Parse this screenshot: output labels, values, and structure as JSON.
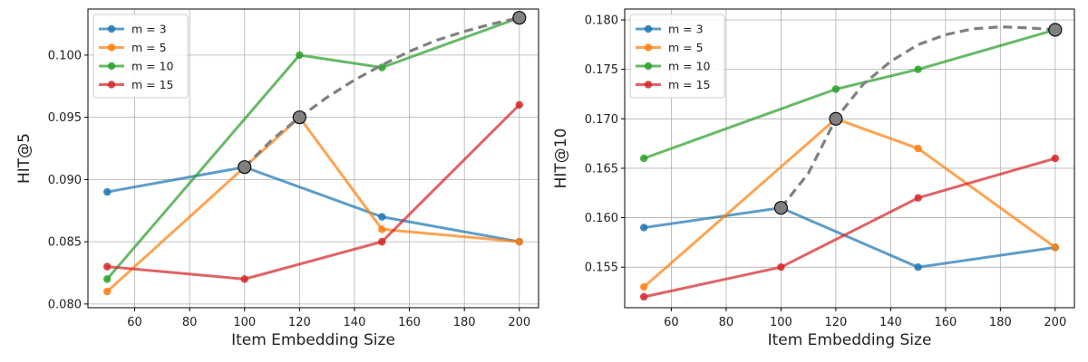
{
  "chart_data": [
    {
      "type": "line",
      "xlabel": "Item Embedding Size",
      "ylabel": "HIT@5",
      "xlim": [
        43,
        207
      ],
      "ylim": [
        0.0797,
        0.1037
      ],
      "xticks": [
        60,
        80,
        100,
        120,
        140,
        160,
        180,
        200
      ],
      "yticks": [
        0.08,
        0.085,
        0.09,
        0.095,
        0.1
      ],
      "yticklabels": [
        "0.080",
        "0.085",
        "0.090",
        "0.095",
        "0.100"
      ],
      "grid": true,
      "legend_position": "top-left",
      "x": [
        50,
        100,
        120,
        150,
        200
      ],
      "series": [
        {
          "name": "m = 3",
          "color": "#1f77b4",
          "values": [
            0.089,
            0.091,
            null,
            0.087,
            0.085
          ]
        },
        {
          "name": "m = 5",
          "color": "#ff7f0e",
          "values": [
            0.081,
            0.091,
            0.095,
            0.086,
            0.085
          ]
        },
        {
          "name": "m = 10",
          "color": "#2ca02c",
          "values": [
            0.082,
            null,
            0.1,
            0.099,
            0.103
          ]
        },
        {
          "name": "m = 15",
          "color": "#d62728",
          "values": [
            0.083,
            0.082,
            null,
            0.085,
            0.096
          ]
        }
      ],
      "best_trend": {
        "color": "#808080",
        "points": [
          {
            "x": 100,
            "y": 0.091
          },
          {
            "x": 120,
            "y": 0.095
          },
          {
            "x": 200,
            "y": 0.103
          }
        ],
        "curve": [
          [
            100,
            0.091
          ],
          [
            110,
            0.0932
          ],
          [
            120,
            0.095
          ],
          [
            130,
            0.0966
          ],
          [
            140,
            0.098
          ],
          [
            150,
            0.0992
          ],
          [
            160,
            0.1003
          ],
          [
            170,
            0.1012
          ],
          [
            180,
            0.1019
          ],
          [
            190,
            0.1025
          ],
          [
            200,
            0.103
          ]
        ]
      }
    },
    {
      "type": "line",
      "xlabel": "Item Embedding Size",
      "ylabel": "HIT@10",
      "xlim": [
        43,
        207
      ],
      "ylim": [
        0.1509,
        0.1811
      ],
      "xticks": [
        60,
        80,
        100,
        120,
        140,
        160,
        180,
        200
      ],
      "yticks": [
        0.155,
        0.16,
        0.165,
        0.17,
        0.175,
        0.18
      ],
      "yticklabels": [
        "0.155",
        "0.160",
        "0.165",
        "0.170",
        "0.175",
        "0.180"
      ],
      "grid": true,
      "legend_position": "top-left",
      "x": [
        50,
        100,
        120,
        150,
        200
      ],
      "series": [
        {
          "name": "m = 3",
          "color": "#1f77b4",
          "values": [
            0.159,
            0.161,
            null,
            0.155,
            0.157
          ]
        },
        {
          "name": "m = 5",
          "color": "#ff7f0e",
          "values": [
            0.153,
            null,
            0.17,
            0.167,
            0.157
          ]
        },
        {
          "name": "m = 10",
          "color": "#2ca02c",
          "values": [
            0.166,
            null,
            0.173,
            0.175,
            0.179
          ]
        },
        {
          "name": "m = 15",
          "color": "#d62728",
          "values": [
            0.152,
            0.155,
            null,
            0.162,
            0.166
          ]
        }
      ],
      "best_trend": {
        "color": "#808080",
        "points": [
          {
            "x": 100,
            "y": 0.161
          },
          {
            "x": 120,
            "y": 0.17
          },
          {
            "x": 200,
            "y": 0.179
          }
        ],
        "curve": [
          [
            100,
            0.161
          ],
          [
            110,
            0.1645
          ],
          [
            120,
            0.17
          ],
          [
            130,
            0.1735
          ],
          [
            140,
            0.1758
          ],
          [
            150,
            0.1775
          ],
          [
            160,
            0.1785
          ],
          [
            170,
            0.1791
          ],
          [
            180,
            0.1793
          ],
          [
            190,
            0.1792
          ],
          [
            200,
            0.179
          ]
        ]
      }
    }
  ]
}
